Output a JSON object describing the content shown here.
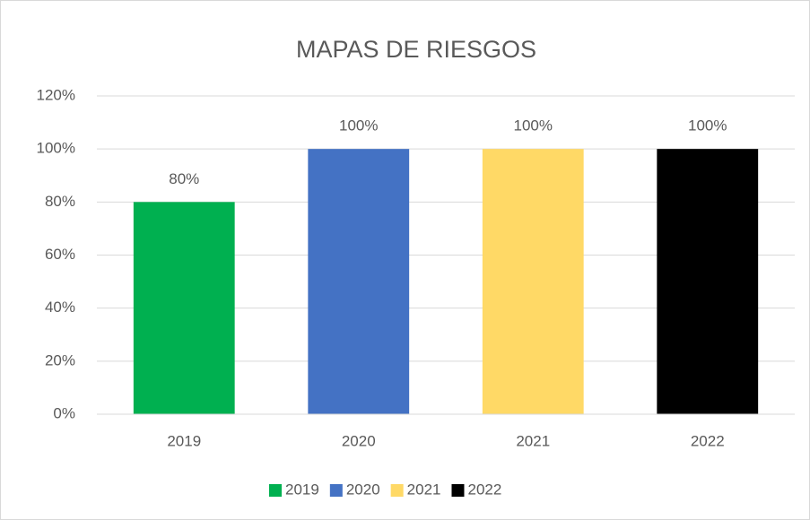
{
  "chart_data": {
    "type": "bar",
    "title": "MAPAS DE RIESGOS",
    "categories": [
      "2019",
      "2020",
      "2021",
      "2022"
    ],
    "series": [
      {
        "name": "2019",
        "color": "#00b050",
        "values": [
          80,
          null,
          null,
          null
        ],
        "value_labels": [
          "80%",
          null,
          null,
          null
        ]
      },
      {
        "name": "2020",
        "color": "#4472c4",
        "values": [
          null,
          100,
          null,
          null
        ],
        "value_labels": [
          null,
          "100%",
          null,
          null
        ]
      },
      {
        "name": "2021",
        "color": "#ffd966",
        "values": [
          null,
          null,
          100,
          null
        ],
        "value_labels": [
          null,
          null,
          "100%",
          null
        ]
      },
      {
        "name": "2022",
        "color": "#000000",
        "values": [
          null,
          null,
          null,
          100
        ],
        "value_labels": [
          null,
          null,
          null,
          "100%"
        ]
      }
    ],
    "ylim": [
      0,
      120
    ],
    "yticks": [
      {
        "value": 0,
        "label": "0%"
      },
      {
        "value": 20,
        "label": "20%"
      },
      {
        "value": 40,
        "label": "40%"
      },
      {
        "value": 60,
        "label": "60%"
      },
      {
        "value": 80,
        "label": "80%"
      },
      {
        "value": 100,
        "label": "100%"
      },
      {
        "value": 120,
        "label": "120%"
      }
    ],
    "grid": true,
    "legend": "bottom"
  }
}
